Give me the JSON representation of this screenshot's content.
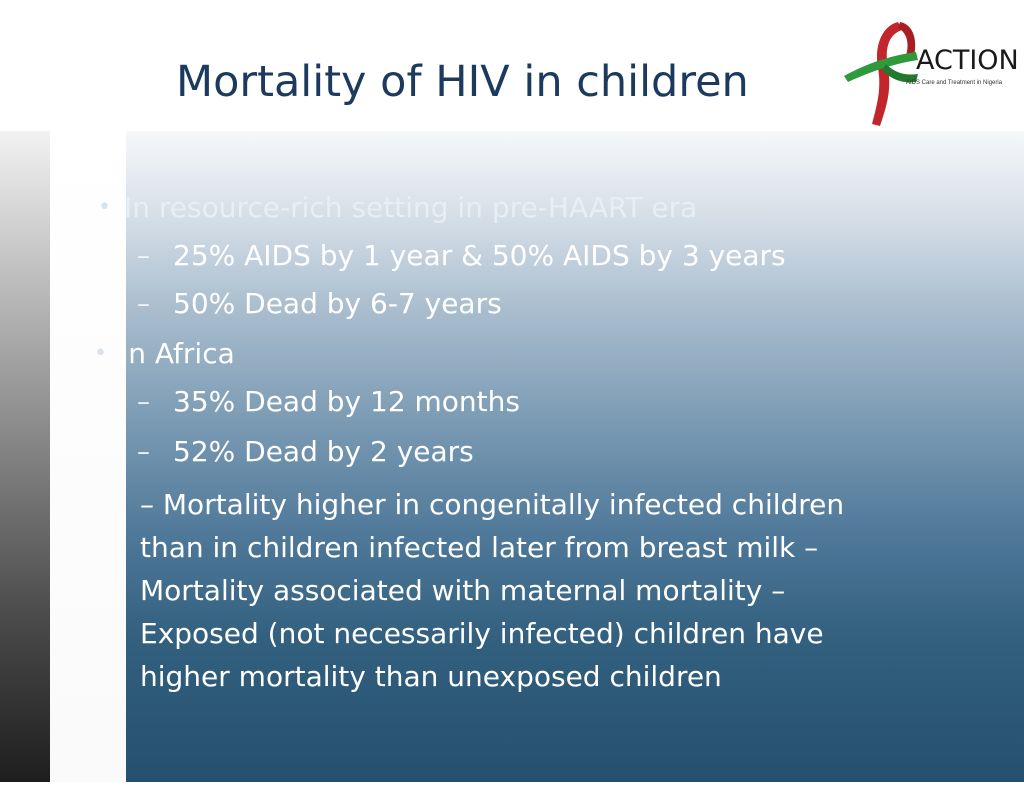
{
  "slide": {
    "title": "Mortality of HIV in children"
  },
  "logo": {
    "name": "ACTION",
    "tagline": "AIDS Care and Treatment in Nigeria",
    "colors": {
      "ribbon_green": "#2e9a3c",
      "ribbon_red": "#c0262c"
    }
  },
  "content": {
    "bullets": [
      {
        "text": "In resource-rich setting in pre-HAART era",
        "subitems": [
          {
            "dash": "–",
            "text": "25% AIDS by 1 year & 50% AIDS by 3 years"
          },
          {
            "dash": "–",
            "text": "50% Dead by 6-7 years"
          }
        ]
      },
      {
        "text": "In Africa",
        "subitems": [
          {
            "dash": "–",
            "text": "35% Dead by 12 months"
          },
          {
            "dash": "–",
            "text": "52% Dead by 2 years"
          }
        ]
      }
    ],
    "paragraph_lines": [
      "– Mortality higher in congenitally infected children",
      "than in children infected later from breast milk –",
      "Mortality associated with maternal mortality –",
      "Exposed (not necessarily infected) children have",
      "higher mortality than unexposed children"
    ]
  },
  "theme": {
    "title_color": "#1c3a5e",
    "panel_top": "#f6f8fa",
    "panel_bottom": "#25506f"
  }
}
